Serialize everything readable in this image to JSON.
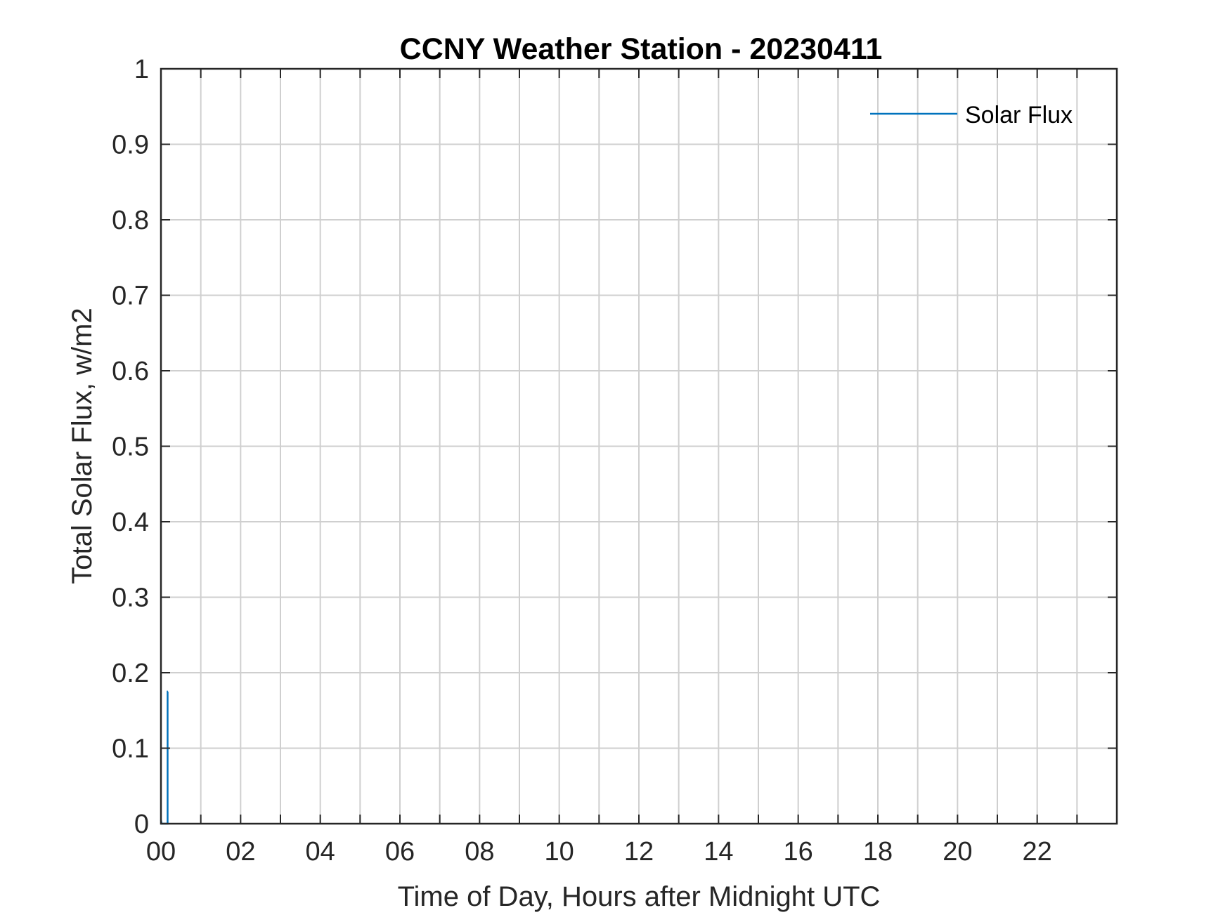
{
  "chart_data": {
    "type": "line",
    "title": "CCNY Weather Station - 20230411",
    "xlabel": "Time of Day, Hours after Midnight UTC",
    "ylabel": "Total Solar Flux, w/m2",
    "xlim": [
      0,
      24
    ],
    "ylim": [
      0,
      1
    ],
    "x_ticks": [
      0,
      2,
      4,
      6,
      8,
      10,
      12,
      14,
      16,
      18,
      20,
      22
    ],
    "x_tick_labels": [
      "00",
      "02",
      "04",
      "06",
      "08",
      "10",
      "12",
      "14",
      "16",
      "18",
      "20",
      "22"
    ],
    "x_grid": [
      0,
      1,
      2,
      3,
      4,
      5,
      6,
      7,
      8,
      9,
      10,
      11,
      12,
      13,
      14,
      15,
      16,
      17,
      18,
      19,
      20,
      21,
      22,
      23
    ],
    "y_ticks": [
      0,
      0.1,
      0.2,
      0.3,
      0.4,
      0.5,
      0.6,
      0.7,
      0.8,
      0.9,
      1
    ],
    "y_tick_labels": [
      "0",
      "0.1",
      "0.2",
      "0.3",
      "0.4",
      "0.5",
      "0.6",
      "0.7",
      "0.8",
      "0.9",
      "1"
    ],
    "grid": true,
    "legend": {
      "position": "top-right"
    },
    "series": [
      {
        "name": "Solar Flux",
        "color": "#0072bd",
        "x": [
          0,
          0.017,
          0.033,
          0.05,
          0.067,
          0.083,
          0.1,
          0.117,
          0.133,
          0.15,
          0.167,
          0.167,
          0.175
        ],
        "y": [
          0.005,
          0,
          0,
          0,
          0,
          0,
          0,
          0,
          0,
          0,
          0,
          0.175,
          0.175
        ]
      }
    ]
  }
}
